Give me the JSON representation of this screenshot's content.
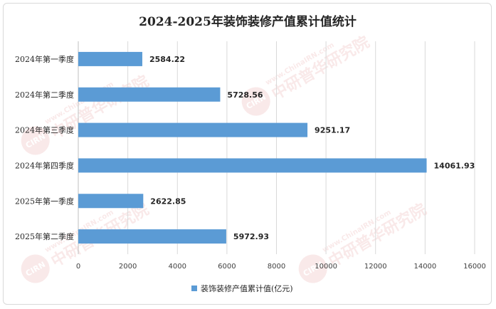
{
  "chart_data": {
    "type": "bar",
    "orientation": "horizontal",
    "title": "2024-2025年装饰装修产值累计值统计",
    "categories": [
      "2024年第一季度",
      "2024年第二季度",
      "2024年第三季度",
      "2024年第四季度",
      "2025年第一季度",
      "2025年第二季度"
    ],
    "series": [
      {
        "name": "装饰装修产值累计值(亿元)",
        "values": [
          2584.22,
          5728.56,
          9251.17,
          14061.93,
          2622.85,
          5972.93
        ],
        "value_labels": [
          "2584.22",
          "5728.56",
          "9251.17",
          "14061.93",
          "2622.85",
          "5972.93"
        ],
        "color": "#5b9bd5"
      }
    ],
    "xlim": [
      0,
      16000
    ],
    "x_ticks": [
      0,
      2000,
      4000,
      6000,
      8000,
      10000,
      12000,
      14000,
      16000
    ],
    "x_tick_labels": [
      "0",
      "2000",
      "4000",
      "6000",
      "8000",
      "10000",
      "12000",
      "14000",
      "16000"
    ],
    "xlabel": "",
    "ylabel": "",
    "grid": "vertical",
    "legend": "bottom"
  },
  "watermark": {
    "logo_text": "CIRN",
    "site_text": "www.ChinaIRN.com",
    "brand_text": "中研普华研究院",
    "color": "#e8a0a0"
  }
}
